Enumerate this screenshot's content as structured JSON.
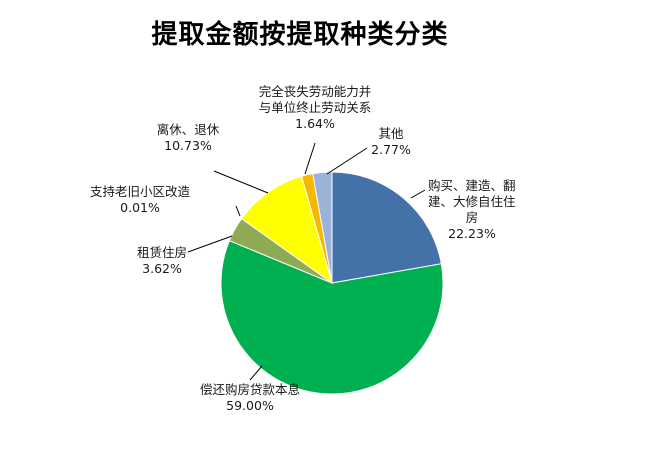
{
  "chart_data": {
    "type": "pie",
    "title": "提取金额按提取种类分类",
    "slices": [
      {
        "label_lines": [
          "购买、建造、翻",
          "建、大修自住住",
          "房"
        ],
        "value_text": "22.23%",
        "value": 22.23,
        "color": "#4472A8"
      },
      {
        "label_lines": [
          "偿还购房贷款本息"
        ],
        "value_text": "59.00%",
        "value": 59.0,
        "color": "#00B050"
      },
      {
        "label_lines": [
          "租赁住房"
        ],
        "value_text": "3.62%",
        "value": 3.62,
        "color": "#8FAA54"
      },
      {
        "label_lines": [
          "支持老旧小区改造"
        ],
        "value_text": "0.01%",
        "value": 0.01,
        "color": "#C0504D"
      },
      {
        "label_lines": [
          "离休、退休"
        ],
        "value_text": "10.73%",
        "value": 10.73,
        "color": "#FFFF00"
      },
      {
        "label_lines": [
          "完全丧失劳动能力并",
          "与单位终止劳动关系"
        ],
        "value_text": "1.64%",
        "value": 1.64,
        "color": "#F5B800"
      },
      {
        "label_lines": [
          "其他"
        ],
        "value_text": "2.77%",
        "value": 2.77,
        "color": "#9BB3D8"
      }
    ],
    "start_angle_deg": 0,
    "direction": "clockwise",
    "legend": "none"
  }
}
